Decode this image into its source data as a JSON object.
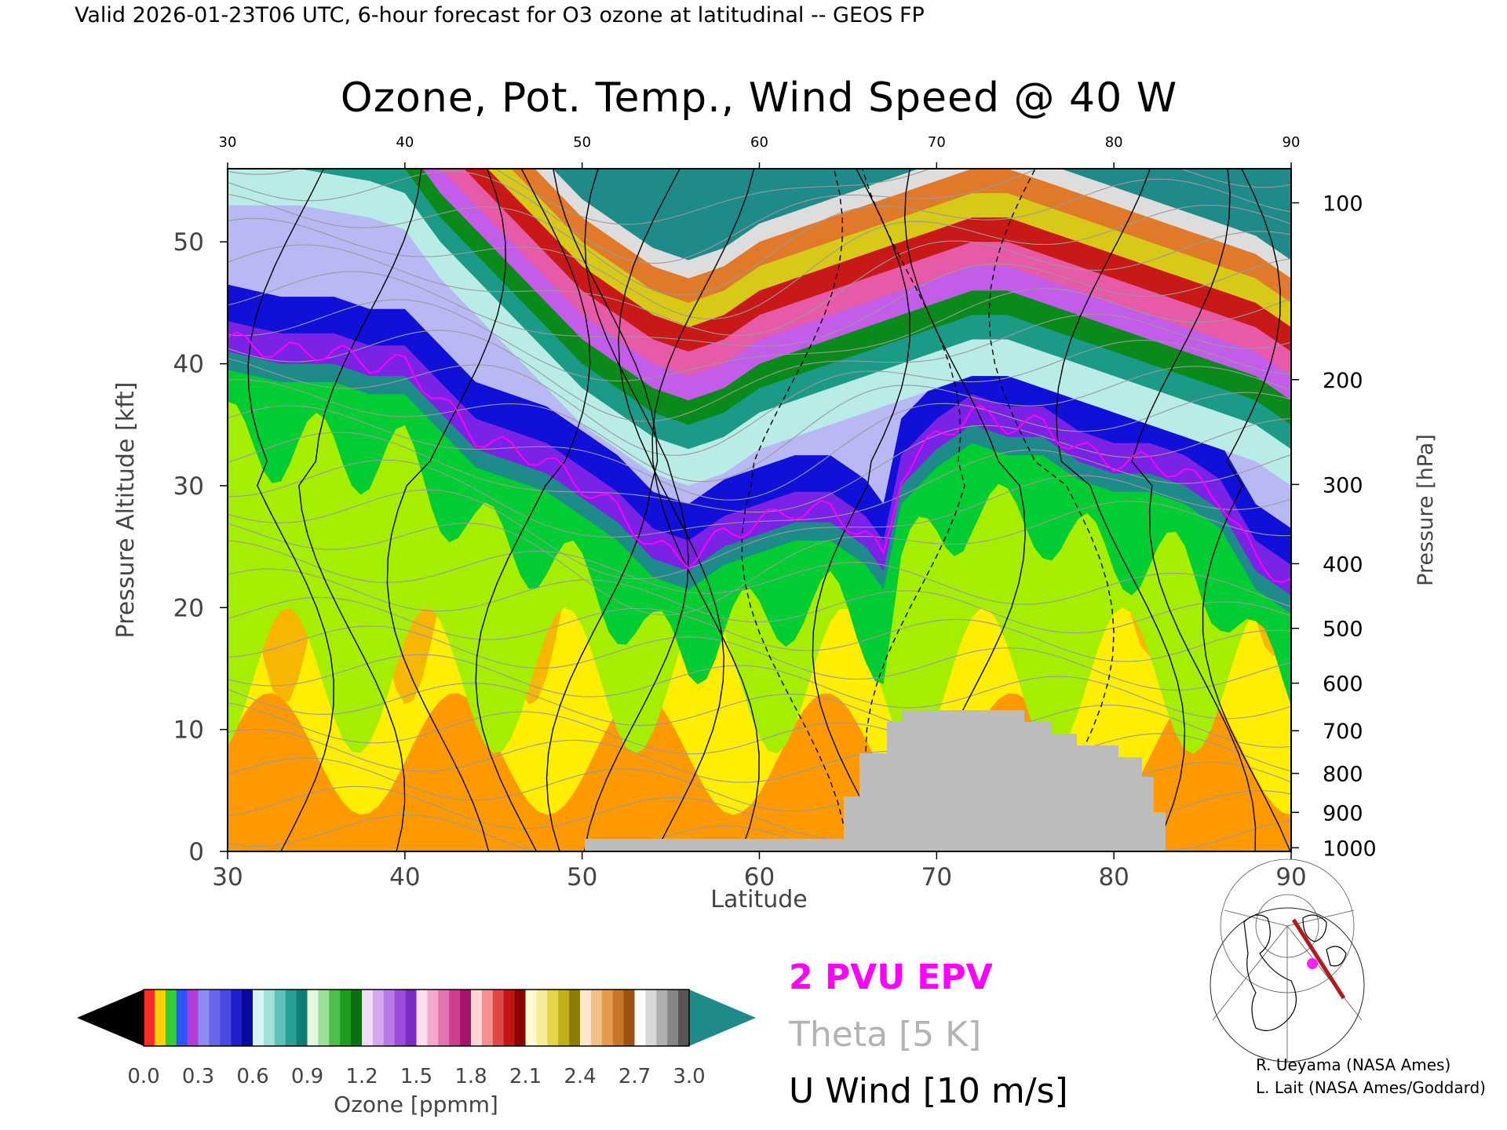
{
  "header": "Valid 2026-01-23T06 UTC, 6-hour forecast for O3 ozone at latitudinal -- GEOS FP",
  "chart_data": {
    "type": "heatmap",
    "title": "Ozone, Pot. Temp., Wind Speed @ 40 W",
    "xlabel": "Latitude",
    "ylabel": "Pressure Altitude [kft]",
    "y2label": "Pressure [hPa]",
    "xlim": [
      30,
      90
    ],
    "ylim": [
      0,
      56
    ],
    "x_ticks": [
      "30",
      "40",
      "50",
      "60",
      "70",
      "80",
      "90"
    ],
    "y_ticks": [
      "0",
      "10",
      "20",
      "30",
      "40",
      "50"
    ],
    "pressure_ticks": [
      {
        "label": "100",
        "kft": 53.2
      },
      {
        "label": "200",
        "kft": 38.7
      },
      {
        "label": "300",
        "kft": 30.1
      },
      {
        "label": "400",
        "kft": 23.6
      },
      {
        "label": "500",
        "kft": 18.3
      },
      {
        "label": "600",
        "kft": 13.8
      },
      {
        "label": "700",
        "kft": 9.9
      },
      {
        "label": "800",
        "kft": 6.4
      },
      {
        "label": "900",
        "kft": 3.2
      },
      {
        "label": "1000",
        "kft": 0.3
      }
    ],
    "tropopause_kft": {
      "lat": [
        30,
        33,
        36,
        38,
        40,
        42,
        44,
        46,
        48,
        50,
        52,
        54,
        56,
        58,
        60,
        62,
        64,
        66,
        67,
        68,
        70,
        72,
        74,
        76,
        78,
        80,
        82,
        84,
        86,
        88,
        90
      ],
      "kft": [
        41,
        40,
        40,
        39,
        39,
        36,
        33,
        32,
        31,
        29,
        27,
        24,
        23,
        25,
        26,
        27,
        27,
        25,
        23,
        30,
        33,
        35,
        34,
        34,
        32,
        31,
        31,
        30,
        28,
        23,
        21
      ]
    },
    "upper_layer_top_kft": {
      "lat": [
        30,
        34,
        38,
        40,
        42,
        44,
        46,
        48,
        50,
        52,
        54,
        56,
        58,
        60,
        62,
        64,
        66,
        68,
        70,
        72,
        74,
        76,
        78,
        80,
        82,
        84,
        86,
        88,
        90
      ],
      "kft": [
        56,
        56,
        55,
        54,
        50,
        47,
        44,
        41,
        38,
        36,
        34,
        33,
        34,
        36,
        37,
        38,
        39,
        40,
        41,
        42,
        42,
        41,
        40,
        39,
        38,
        37,
        36,
        35,
        33
      ]
    },
    "ozone_colorbar": {
      "label": "Ozone [ppmm]",
      "tick_labels": [
        "0.0",
        "0.3",
        "0.6",
        "0.9",
        "1.2",
        "1.5",
        "1.8",
        "2.1",
        "2.4",
        "2.7",
        "3.0"
      ],
      "low_color": "#000000",
      "high_color": "#1f8a8a"
    },
    "legend": [
      {
        "text": "2 PVU EPV",
        "color": "#ff00ff"
      },
      {
        "text": "Theta [5 K]",
        "color": "#b3b3b3"
      },
      {
        "text": "U Wind [10 m/s]",
        "color": "#000000"
      }
    ],
    "credits": [
      "R. Ueyama (NASA Ames)",
      "L. Lait (NASA Ames/Goddard)"
    ]
  }
}
